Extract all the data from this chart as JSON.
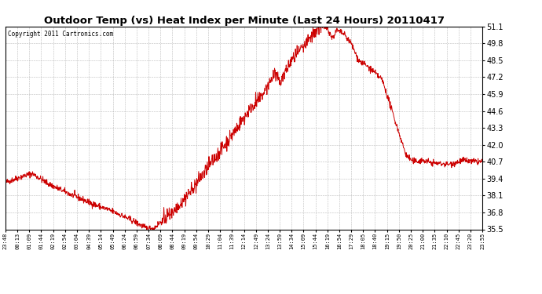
{
  "title": "Outdoor Temp (vs) Heat Index per Minute (Last 24 Hours) 20110417",
  "copyright": "Copyright 2011 Cartronics.com",
  "line_color": "#cc0000",
  "background_color": "#ffffff",
  "grid_color": "#aaaaaa",
  "ylim": [
    35.5,
    51.1
  ],
  "yticks": [
    35.5,
    36.8,
    38.1,
    39.4,
    40.7,
    42.0,
    43.3,
    44.6,
    45.9,
    47.2,
    48.5,
    49.8,
    51.1
  ],
  "xtick_labels": [
    "23:48",
    "00:13",
    "01:09",
    "01:44",
    "02:19",
    "02:54",
    "03:04",
    "04:39",
    "05:14",
    "05:49",
    "06:24",
    "06:59",
    "07:34",
    "08:09",
    "08:44",
    "09:19",
    "09:54",
    "10:29",
    "11:04",
    "11:39",
    "12:14",
    "12:49",
    "13:24",
    "13:59",
    "14:34",
    "15:09",
    "15:44",
    "16:19",
    "16:54",
    "17:29",
    "18:05",
    "18:40",
    "19:15",
    "19:50",
    "20:25",
    "21:00",
    "21:35",
    "22:10",
    "22:45",
    "23:20",
    "23:55"
  ],
  "n_points": 1440,
  "curve_segments": [
    {
      "t0": 0.0,
      "t1": 0.03,
      "v0": 39.1,
      "v1": 39.5
    },
    {
      "t0": 0.03,
      "t1": 0.055,
      "v0": 39.5,
      "v1": 39.8
    },
    {
      "t0": 0.055,
      "t1": 0.065,
      "v0": 39.8,
      "v1": 39.6
    },
    {
      "t0": 0.065,
      "t1": 0.09,
      "v0": 39.6,
      "v1": 39.0
    },
    {
      "t0": 0.09,
      "t1": 0.13,
      "v0": 39.0,
      "v1": 38.3
    },
    {
      "t0": 0.13,
      "t1": 0.18,
      "v0": 38.3,
      "v1": 37.5
    },
    {
      "t0": 0.18,
      "t1": 0.23,
      "v0": 37.5,
      "v1": 36.8
    },
    {
      "t0": 0.23,
      "t1": 0.265,
      "v0": 36.8,
      "v1": 36.2
    },
    {
      "t0": 0.265,
      "t1": 0.295,
      "v0": 36.2,
      "v1": 35.6
    },
    {
      "t0": 0.295,
      "t1": 0.31,
      "v0": 35.6,
      "v1": 35.55
    },
    {
      "t0": 0.31,
      "t1": 0.33,
      "v0": 35.55,
      "v1": 36.2
    },
    {
      "t0": 0.33,
      "t1": 0.36,
      "v0": 36.2,
      "v1": 37.2
    },
    {
      "t0": 0.36,
      "t1": 0.39,
      "v0": 37.2,
      "v1": 38.5
    },
    {
      "t0": 0.39,
      "t1": 0.42,
      "v0": 38.5,
      "v1": 40.0
    },
    {
      "t0": 0.42,
      "t1": 0.45,
      "v0": 40.0,
      "v1": 41.5
    },
    {
      "t0": 0.45,
      "t1": 0.48,
      "v0": 41.5,
      "v1": 43.0
    },
    {
      "t0": 0.48,
      "t1": 0.51,
      "v0": 43.0,
      "v1": 44.6
    },
    {
      "t0": 0.51,
      "t1": 0.54,
      "v0": 44.6,
      "v1": 45.9
    },
    {
      "t0": 0.54,
      "t1": 0.565,
      "v0": 45.9,
      "v1": 47.5
    },
    {
      "t0": 0.565,
      "t1": 0.575,
      "v0": 47.5,
      "v1": 46.8
    },
    {
      "t0": 0.575,
      "t1": 0.6,
      "v0": 46.8,
      "v1": 48.5
    },
    {
      "t0": 0.6,
      "t1": 0.625,
      "v0": 48.5,
      "v1": 49.5
    },
    {
      "t0": 0.625,
      "t1": 0.645,
      "v0": 49.5,
      "v1": 50.5
    },
    {
      "t0": 0.645,
      "t1": 0.66,
      "v0": 50.5,
      "v1": 51.1
    },
    {
      "t0": 0.66,
      "t1": 0.675,
      "v0": 51.1,
      "v1": 51.0
    },
    {
      "t0": 0.675,
      "t1": 0.685,
      "v0": 51.0,
      "v1": 50.2
    },
    {
      "t0": 0.685,
      "t1": 0.695,
      "v0": 50.2,
      "v1": 50.8
    },
    {
      "t0": 0.695,
      "t1": 0.71,
      "v0": 50.8,
      "v1": 50.5
    },
    {
      "t0": 0.71,
      "t1": 0.725,
      "v0": 50.5,
      "v1": 49.8
    },
    {
      "t0": 0.725,
      "t1": 0.74,
      "v0": 49.8,
      "v1": 48.5
    },
    {
      "t0": 0.74,
      "t1": 0.76,
      "v0": 48.5,
      "v1": 48.0
    },
    {
      "t0": 0.76,
      "t1": 0.79,
      "v0": 48.0,
      "v1": 47.0
    },
    {
      "t0": 0.79,
      "t1": 0.82,
      "v0": 47.0,
      "v1": 43.5
    },
    {
      "t0": 0.82,
      "t1": 0.84,
      "v0": 43.5,
      "v1": 41.2
    },
    {
      "t0": 0.84,
      "t1": 0.855,
      "v0": 41.2,
      "v1": 40.7
    },
    {
      "t0": 0.855,
      "t1": 0.875,
      "v0": 40.7,
      "v1": 40.8
    },
    {
      "t0": 0.875,
      "t1": 0.895,
      "v0": 40.8,
      "v1": 40.6
    },
    {
      "t0": 0.895,
      "t1": 0.93,
      "v0": 40.6,
      "v1": 40.5
    },
    {
      "t0": 0.93,
      "t1": 0.96,
      "v0": 40.5,
      "v1": 40.8
    },
    {
      "t0": 0.96,
      "t1": 0.98,
      "v0": 40.8,
      "v1": 40.7
    },
    {
      "t0": 0.98,
      "t1": 1.0,
      "v0": 40.7,
      "v1": 40.7
    }
  ]
}
